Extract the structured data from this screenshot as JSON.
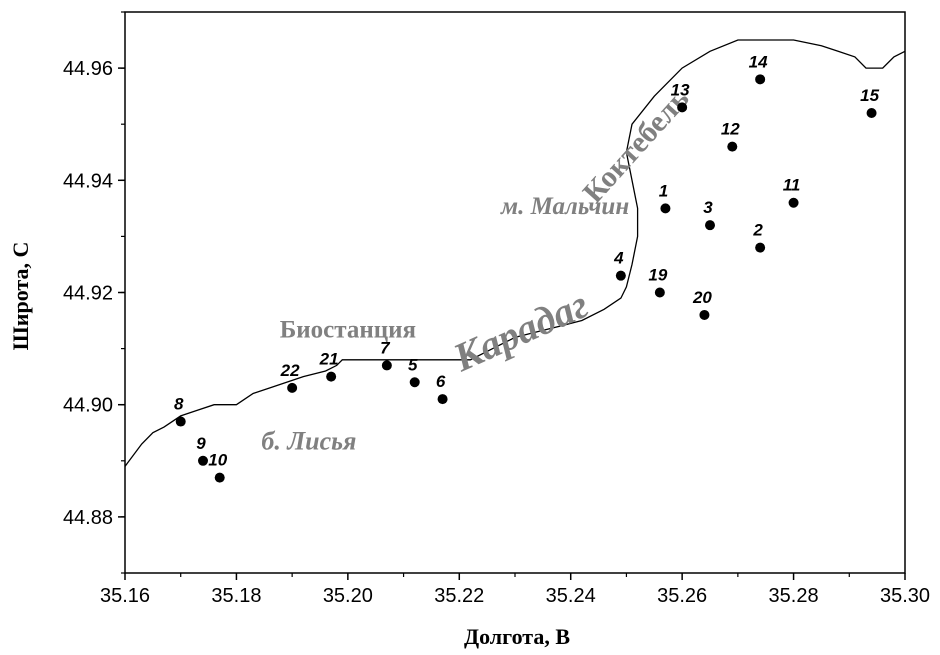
{
  "chart_data": {
    "type": "scatter",
    "xlabel": "Долгота, В",
    "ylabel": "Широта, С",
    "xlim": [
      35.16,
      35.3
    ],
    "ylim": [
      44.87,
      44.97
    ],
    "x_ticks": [
      "35.16",
      "35.18",
      "35.20",
      "35.22",
      "35.24",
      "35.26",
      "35.28",
      "35.30"
    ],
    "y_ticks": [
      "44.88",
      "44.90",
      "44.92",
      "44.94",
      "44.96"
    ],
    "points": [
      {
        "label": "1",
        "x": 35.257,
        "y": 44.935
      },
      {
        "label": "2",
        "x": 35.274,
        "y": 44.928
      },
      {
        "label": "3",
        "x": 35.265,
        "y": 44.932
      },
      {
        "label": "4",
        "x": 35.249,
        "y": 44.923
      },
      {
        "label": "5",
        "x": 35.212,
        "y": 44.904
      },
      {
        "label": "6",
        "x": 35.217,
        "y": 44.901
      },
      {
        "label": "7",
        "x": 35.207,
        "y": 44.907
      },
      {
        "label": "8",
        "x": 35.17,
        "y": 44.897
      },
      {
        "label": "9",
        "x": 35.174,
        "y": 44.89
      },
      {
        "label": "10",
        "x": 35.177,
        "y": 44.887
      },
      {
        "label": "11",
        "x": 35.28,
        "y": 44.936
      },
      {
        "label": "12",
        "x": 35.269,
        "y": 44.946
      },
      {
        "label": "13",
        "x": 35.26,
        "y": 44.953
      },
      {
        "label": "14",
        "x": 35.274,
        "y": 44.958
      },
      {
        "label": "15",
        "x": 35.294,
        "y": 44.952
      },
      {
        "label": "19",
        "x": 35.256,
        "y": 44.92
      },
      {
        "label": "20",
        "x": 35.264,
        "y": 44.916
      },
      {
        "label": "21",
        "x": 35.197,
        "y": 44.905
      },
      {
        "label": "22",
        "x": 35.19,
        "y": 44.903
      }
    ],
    "coastline": [
      [
        35.16,
        44.889
      ],
      [
        35.163,
        44.893
      ],
      [
        35.165,
        44.895
      ],
      [
        35.167,
        44.896
      ],
      [
        35.17,
        44.898
      ],
      [
        35.173,
        44.899
      ],
      [
        35.176,
        44.9
      ],
      [
        35.18,
        44.9
      ],
      [
        35.183,
        44.902
      ],
      [
        35.186,
        44.903
      ],
      [
        35.189,
        44.904
      ],
      [
        35.192,
        44.905
      ],
      [
        35.196,
        44.906
      ],
      [
        35.198,
        44.907
      ],
      [
        35.199,
        44.908
      ],
      [
        35.205,
        44.908
      ],
      [
        35.212,
        44.908
      ],
      [
        35.218,
        44.908
      ],
      [
        35.222,
        44.908
      ],
      [
        35.226,
        44.91
      ],
      [
        35.23,
        44.912
      ],
      [
        35.234,
        44.913
      ],
      [
        35.238,
        44.914
      ],
      [
        35.242,
        44.915
      ],
      [
        35.246,
        44.917
      ],
      [
        35.249,
        44.919
      ],
      [
        35.25,
        44.921
      ],
      [
        35.251,
        44.925
      ],
      [
        35.252,
        44.93
      ],
      [
        35.252,
        44.935
      ],
      [
        35.251,
        44.94
      ],
      [
        35.25,
        44.945
      ],
      [
        35.251,
        44.95
      ],
      [
        35.255,
        44.955
      ],
      [
        35.26,
        44.96
      ],
      [
        35.265,
        44.963
      ],
      [
        35.27,
        44.965
      ],
      [
        35.275,
        44.965
      ],
      [
        35.28,
        44.965
      ],
      [
        35.285,
        44.964
      ],
      [
        35.288,
        44.963
      ],
      [
        35.291,
        44.962
      ],
      [
        35.293,
        44.96
      ],
      [
        35.296,
        44.96
      ],
      [
        35.298,
        44.962
      ],
      [
        35.3,
        44.963
      ]
    ],
    "annotations": [
      {
        "text": "Коктебель",
        "x": 35.253,
        "y": 44.945,
        "rotate": -48,
        "size": 30
      },
      {
        "text": "м. Мальчин",
        "x": 35.239,
        "y": 44.934,
        "rotate": 0,
        "size": 25
      },
      {
        "text": "Карадаг",
        "x": 35.232,
        "y": 44.911,
        "rotate": -24,
        "size": 40
      },
      {
        "text": "Биостанция",
        "x": 35.2,
        "y": 44.912,
        "rotate": 0,
        "size": 25
      },
      {
        "text": "б. Лисья",
        "x": 35.193,
        "y": 44.892,
        "rotate": 0,
        "size": 26
      }
    ]
  }
}
